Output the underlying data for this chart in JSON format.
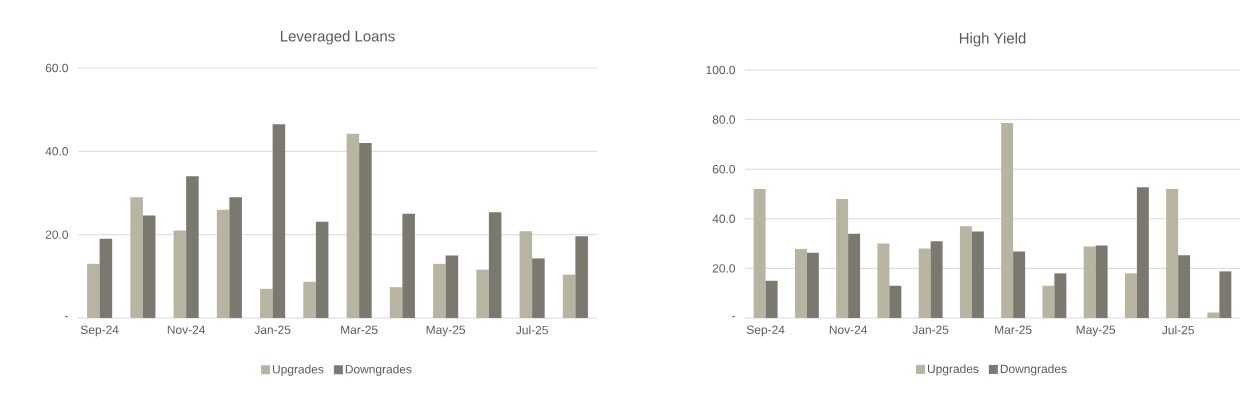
{
  "chart_data": [
    {
      "type": "bar",
      "title": "Leveraged Loans",
      "categories": [
        "Sep-24",
        null,
        "Nov-24",
        null,
        "Jan-25",
        null,
        "Mar-25",
        null,
        "May-25",
        null,
        "Jul-25",
        null
      ],
      "series": [
        {
          "name": "Upgrades",
          "color": "#b8b4a2",
          "values": [
            13.0,
            29.0,
            21.0,
            26.0,
            7.0,
            8.7,
            44.2,
            7.4,
            13.0,
            11.6,
            20.8,
            10.4
          ]
        },
        {
          "name": "Downgrades",
          "color": "#7b7870",
          "values": [
            19.0,
            24.6,
            34.0,
            29.0,
            46.5,
            23.1,
            42.0,
            25.0,
            15.0,
            25.4,
            14.3,
            19.6
          ]
        }
      ],
      "ylim": [
        0,
        60
      ],
      "yticks": [
        {
          "value": 0,
          "label": "-"
        },
        {
          "value": 20,
          "label": "20.0"
        },
        {
          "value": 40,
          "label": "40.0"
        },
        {
          "value": 60,
          "label": "60.0"
        }
      ],
      "grid": "y",
      "legend": "bottom"
    },
    {
      "type": "bar",
      "title": "High Yield",
      "categories": [
        "Sep-24",
        null,
        "Nov-24",
        null,
        "Jan-25",
        null,
        "Mar-25",
        null,
        "May-25",
        null,
        "Jul-25",
        null
      ],
      "series": [
        {
          "name": "Upgrades",
          "color": "#b8b4a2",
          "values": [
            52.0,
            27.8,
            48.0,
            30.0,
            28.0,
            37.0,
            78.6,
            13.0,
            28.8,
            18.0,
            52.0,
            2.2
          ]
        },
        {
          "name": "Downgrades",
          "color": "#7b7870",
          "values": [
            15.0,
            26.3,
            34.0,
            13.0,
            30.9,
            34.9,
            26.8,
            18.0,
            29.2,
            52.7,
            25.3,
            18.8
          ]
        }
      ],
      "ylim": [
        0,
        100
      ],
      "yticks": [
        {
          "value": 0,
          "label": "-"
        },
        {
          "value": 20,
          "label": "20.0"
        },
        {
          "value": 40,
          "label": "40.0"
        },
        {
          "value": 60,
          "label": "60.0"
        },
        {
          "value": 80,
          "label": "80.0"
        },
        {
          "value": 100,
          "label": "100.0"
        }
      ],
      "grid": "y",
      "legend": "bottom"
    }
  ]
}
